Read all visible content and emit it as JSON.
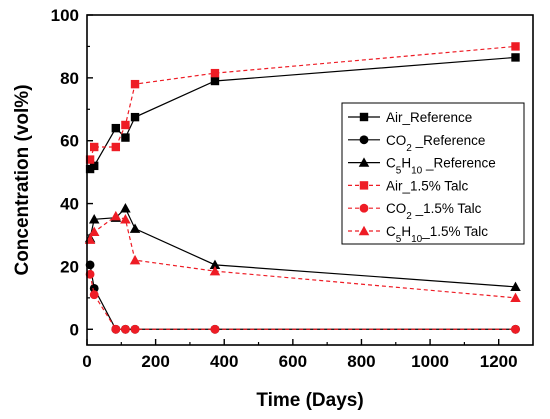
{
  "chart_data": {
    "type": "line",
    "title": "",
    "xlabel": "Time (Days)",
    "ylabel": "Concentration (vol%)",
    "xlim": [
      0,
      1300
    ],
    "ylim": [
      -5,
      100
    ],
    "xticks": [
      0,
      200,
      400,
      600,
      800,
      1000,
      1200
    ],
    "yticks": [
      0,
      20,
      40,
      60,
      80,
      100
    ],
    "legend_position": "right",
    "series": [
      {
        "name_parts": [
          {
            "t": "Air_Reference"
          }
        ],
        "color": "#000000",
        "marker": "square",
        "dashed": false,
        "points": [
          [
            9,
            51
          ],
          [
            21,
            52
          ],
          [
            84,
            64
          ],
          [
            112,
            61
          ],
          [
            140,
            67.5
          ],
          [
            373,
            79
          ],
          [
            1249,
            86.5
          ]
        ]
      },
      {
        "name_parts": [
          {
            "t": "CO"
          },
          {
            "t": "2",
            "sub": true
          },
          {
            "t": " _Reference"
          }
        ],
        "color": "#000000",
        "marker": "circle",
        "dashed": false,
        "points": [
          [
            9,
            20.5
          ],
          [
            21,
            13
          ],
          [
            84,
            0
          ],
          [
            112,
            0
          ],
          [
            140,
            0
          ],
          [
            373,
            0
          ],
          [
            1249,
            0
          ]
        ]
      },
      {
        "name_parts": [
          {
            "t": "C"
          },
          {
            "t": "5",
            "sub": true
          },
          {
            "t": "H"
          },
          {
            "t": "10",
            "sub": true
          },
          {
            "t": " _Reference"
          }
        ],
        "color": "#000000",
        "marker": "triangle",
        "dashed": false,
        "points": [
          [
            9,
            29
          ],
          [
            21,
            35
          ],
          [
            84,
            35.5
          ],
          [
            112,
            38.5
          ],
          [
            140,
            32
          ],
          [
            373,
            20.5
          ],
          [
            1249,
            13.5
          ]
        ]
      },
      {
        "name_parts": [
          {
            "t": "Air_1.5% Talc"
          }
        ],
        "color": "#ee1c25",
        "marker": "square",
        "dashed": true,
        "points": [
          [
            9,
            54
          ],
          [
            21,
            58
          ],
          [
            84,
            58
          ],
          [
            112,
            65
          ],
          [
            140,
            78
          ],
          [
            373,
            81.5
          ],
          [
            1249,
            90
          ]
        ]
      },
      {
        "name_parts": [
          {
            "t": "CO"
          },
          {
            "t": "2",
            "sub": true
          },
          {
            "t": " _1.5% Talc"
          }
        ],
        "color": "#ee1c25",
        "marker": "circle",
        "dashed": true,
        "points": [
          [
            9,
            17.5
          ],
          [
            21,
            11
          ],
          [
            84,
            0
          ],
          [
            112,
            0
          ],
          [
            140,
            0
          ],
          [
            373,
            0
          ],
          [
            1249,
            0
          ]
        ]
      },
      {
        "name_parts": [
          {
            "t": "C"
          },
          {
            "t": "5",
            "sub": true
          },
          {
            "t": "H"
          },
          {
            "t": "10",
            "sub": true
          },
          {
            "t": "_1.5% Talc"
          }
        ],
        "color": "#ee1c25",
        "marker": "triangle",
        "dashed": true,
        "points": [
          [
            9,
            28.5
          ],
          [
            21,
            31
          ],
          [
            84,
            36
          ],
          [
            112,
            35
          ],
          [
            140,
            22
          ],
          [
            373,
            18.5
          ],
          [
            1249,
            10
          ]
        ]
      }
    ]
  }
}
